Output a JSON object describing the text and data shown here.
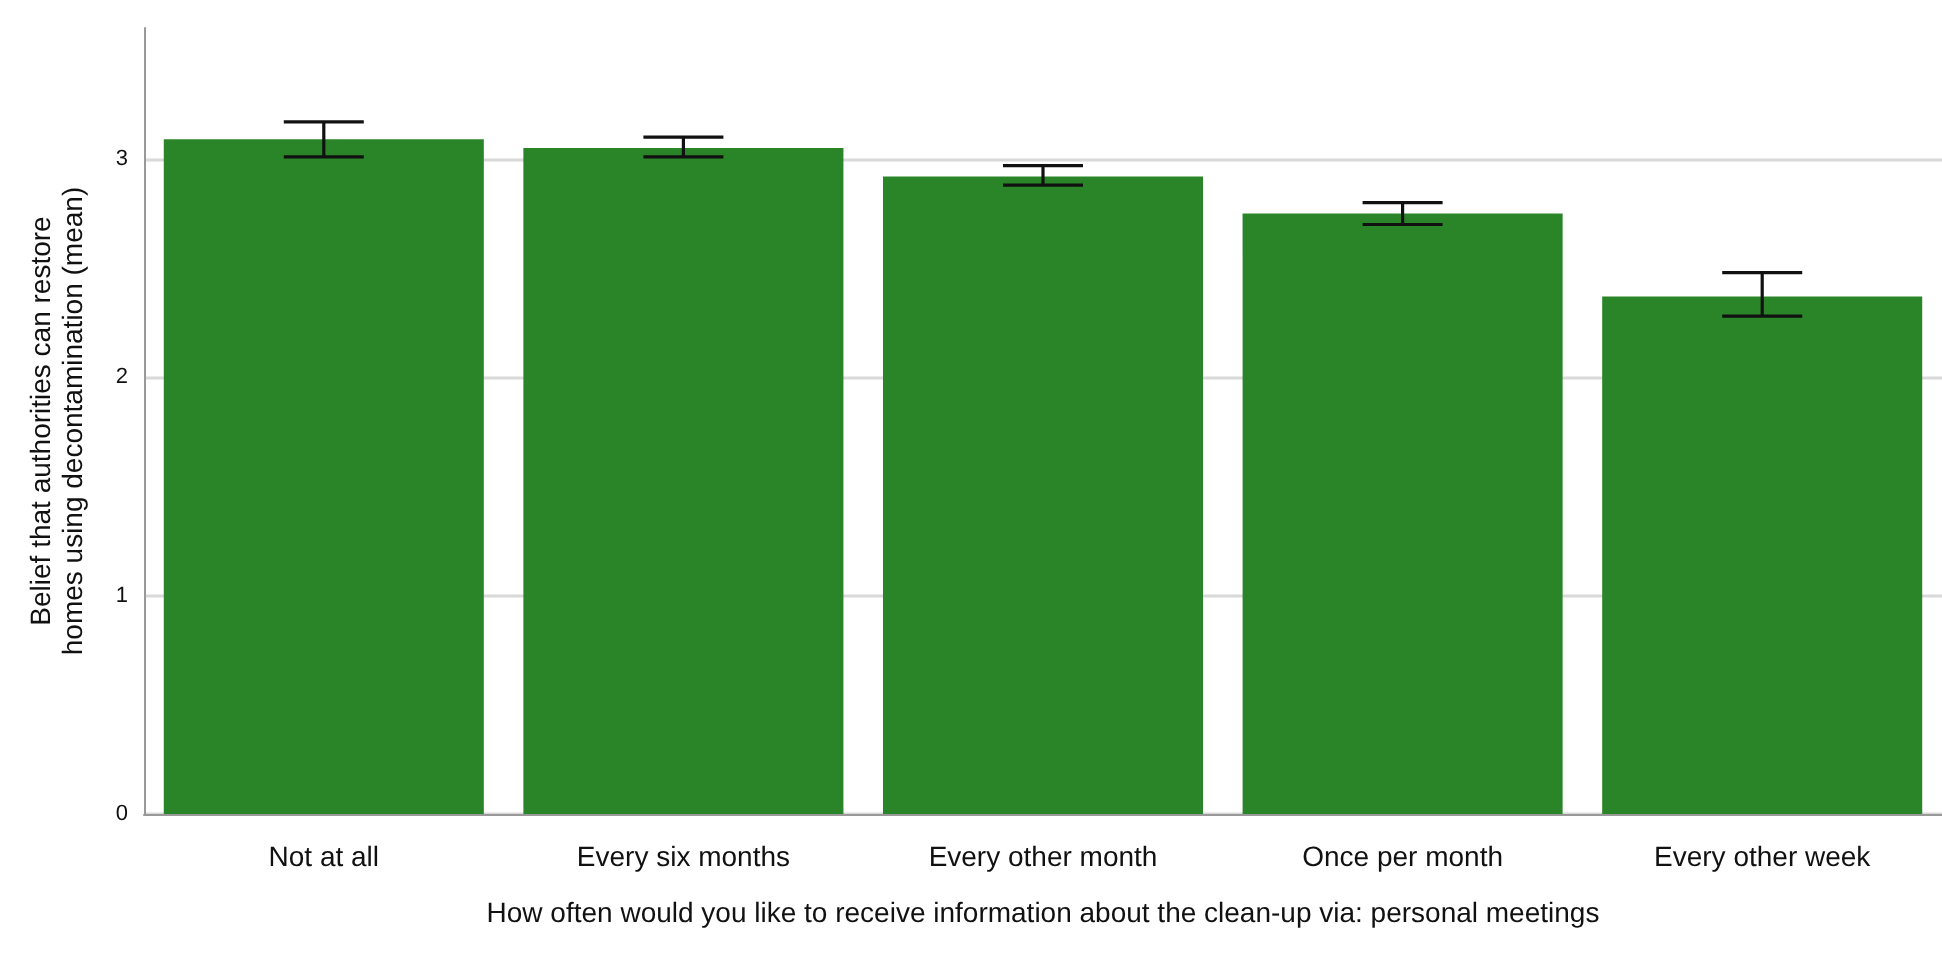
{
  "chart_data": {
    "type": "bar",
    "xlabel": "How often would you like to receive information about the clean-up via: personal meetings",
    "ylabel": "Belief that authorities can restore homes using decontamination (mean)",
    "categories": [
      "Not at all",
      "Every six months",
      "Every other month",
      "Once per month",
      "Every other week"
    ],
    "values": [
      3.09,
      3.05,
      2.92,
      2.75,
      2.37
    ],
    "errors": [
      [
        3.01,
        3.17
      ],
      [
        3.01,
        3.1
      ],
      [
        2.88,
        2.97
      ],
      [
        2.7,
        2.8
      ],
      [
        2.28,
        2.48
      ]
    ],
    "color": "#2a8529",
    "ylim": [
      0,
      3.6
    ],
    "yticks": [
      0,
      1,
      2,
      3
    ],
    "grid": "y"
  }
}
